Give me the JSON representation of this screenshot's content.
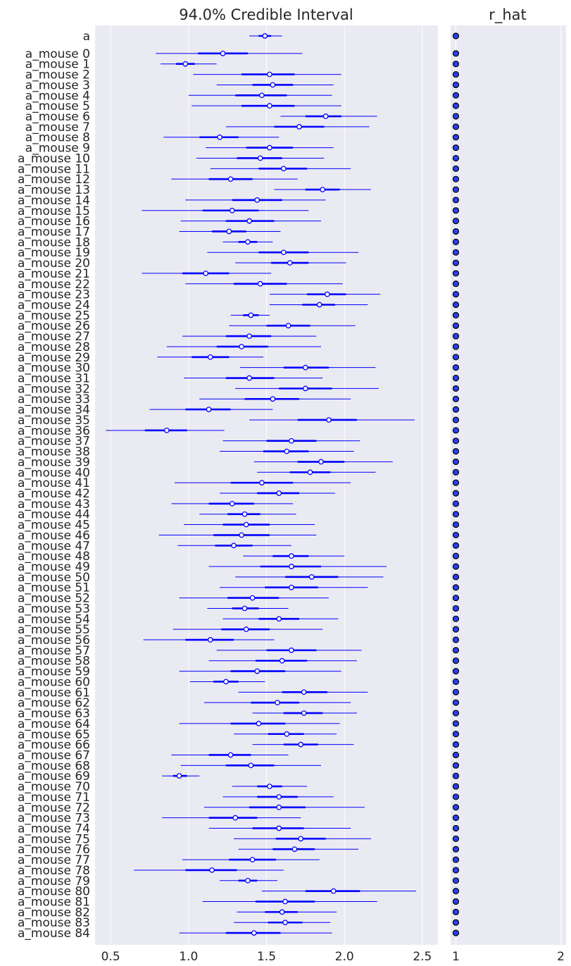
{
  "chart_data": [
    {
      "type": "forest",
      "title": "94.0% Credible Interval",
      "xlim": [
        0.4,
        2.6
      ],
      "xticks": [
        0.5,
        1.0,
        1.5,
        2.0,
        2.5
      ],
      "xtick_labels": [
        "0.5",
        "1.0",
        "1.5",
        "2.0",
        "2.5"
      ],
      "grid": true,
      "colors": {
        "line": "#0000ff",
        "marker_fill": "#ffffff",
        "background": "#eaeaf2",
        "grid": "#ffffff"
      },
      "labels": [
        "a",
        "a_mouse 0",
        "a_mouse 1",
        "a_mouse 2",
        "a_mouse 3",
        "a_mouse 4",
        "a_mouse 5",
        "a_mouse 6",
        "a_mouse 7",
        "a_mouse 8",
        "a_mouse 9",
        "a_mouse 10",
        "a_mouse 11",
        "a_mouse 12",
        "a_mouse 13",
        "a_mouse 14",
        "a_mouse 15",
        "a_mouse 16",
        "a_mouse 17",
        "a_mouse 18",
        "a_mouse 19",
        "a_mouse 20",
        "a_mouse 21",
        "a_mouse 22",
        "a_mouse 23",
        "a_mouse 24",
        "a_mouse 25",
        "a_mouse 26",
        "a_mouse 27",
        "a_mouse 28",
        "a_mouse 29",
        "a_mouse 30",
        "a_mouse 31",
        "a_mouse 32",
        "a_mouse 33",
        "a_mouse 34",
        "a_mouse 35",
        "a_mouse 36",
        "a_mouse 37",
        "a_mouse 38",
        "a_mouse 39",
        "a_mouse 40",
        "a_mouse 41",
        "a_mouse 42",
        "a_mouse 43",
        "a_mouse 44",
        "a_mouse 45",
        "a_mouse 46",
        "a_mouse 47",
        "a_mouse 48",
        "a_mouse 49",
        "a_mouse 50",
        "a_mouse 51",
        "a_mouse 52",
        "a_mouse 53",
        "a_mouse 54",
        "a_mouse 55",
        "a_mouse 56",
        "a_mouse 57",
        "a_mouse 58",
        "a_mouse 59",
        "a_mouse 60",
        "a_mouse 61",
        "a_mouse 62",
        "a_mouse 63",
        "a_mouse 64",
        "a_mouse 65",
        "a_mouse 66",
        "a_mouse 67",
        "a_mouse 68",
        "a_mouse 69",
        "a_mouse 70",
        "a_mouse 71",
        "a_mouse 72",
        "a_mouse 73",
        "a_mouse 74",
        "a_mouse 75",
        "a_mouse 76",
        "a_mouse 77",
        "a_mouse 78",
        "a_mouse 79",
        "a_mouse 80",
        "a_mouse 81",
        "a_mouse 82",
        "a_mouse 83",
        "a_mouse 84"
      ],
      "median": [
        1.49,
        1.22,
        0.98,
        1.52,
        1.54,
        1.47,
        1.52,
        1.88,
        1.71,
        1.2,
        1.52,
        1.46,
        1.61,
        1.27,
        1.86,
        1.44,
        1.28,
        1.39,
        1.26,
        1.38,
        1.61,
        1.65,
        1.11,
        1.46,
        1.89,
        1.84,
        1.4,
        1.64,
        1.39,
        1.34,
        1.14,
        1.75,
        1.39,
        1.75,
        1.54,
        1.13,
        1.9,
        0.86,
        1.66,
        1.63,
        1.85,
        1.78,
        1.47,
        1.58,
        1.28,
        1.36,
        1.37,
        1.34,
        1.29,
        1.66,
        1.66,
        1.79,
        1.66,
        1.41,
        1.36,
        1.58,
        1.37,
        1.14,
        1.66,
        1.6,
        1.44,
        1.24,
        1.74,
        1.57,
        1.74,
        1.45,
        1.63,
        1.72,
        1.27,
        1.4,
        0.94,
        1.52,
        1.58,
        1.58,
        1.3,
        1.58,
        1.72,
        1.68,
        1.41,
        1.15,
        1.38,
        1.93,
        1.62,
        1.6,
        1.62,
        1.42
      ],
      "iqr_low": [
        1.45,
        1.06,
        0.92,
        1.34,
        1.41,
        1.3,
        1.34,
        1.75,
        1.55,
        1.07,
        1.37,
        1.31,
        1.45,
        1.13,
        1.75,
        1.28,
        1.09,
        1.24,
        1.15,
        1.32,
        1.45,
        1.53,
        0.96,
        1.29,
        1.76,
        1.73,
        1.35,
        1.5,
        1.24,
        1.18,
        1.02,
        1.61,
        1.24,
        1.58,
        1.36,
        0.98,
        1.7,
        0.72,
        1.5,
        1.48,
        1.7,
        1.65,
        1.27,
        1.44,
        1.13,
        1.25,
        1.22,
        1.16,
        1.17,
        1.54,
        1.46,
        1.62,
        1.49,
        1.25,
        1.28,
        1.45,
        1.21,
        0.98,
        1.5,
        1.43,
        1.27,
        1.16,
        1.6,
        1.4,
        1.61,
        1.27,
        1.51,
        1.61,
        1.13,
        1.24,
        0.9,
        1.44,
        1.44,
        1.39,
        1.13,
        1.41,
        1.56,
        1.54,
        1.26,
        0.98,
        1.32,
        1.75,
        1.43,
        1.49,
        1.51,
        1.24
      ],
      "iqr_high": [
        1.53,
        1.38,
        1.04,
        1.68,
        1.67,
        1.63,
        1.68,
        1.98,
        1.87,
        1.32,
        1.67,
        1.6,
        1.76,
        1.41,
        1.97,
        1.6,
        1.45,
        1.55,
        1.37,
        1.44,
        1.77,
        1.77,
        1.26,
        1.63,
        2.01,
        1.94,
        1.45,
        1.78,
        1.53,
        1.51,
        1.26,
        1.9,
        1.55,
        1.92,
        1.71,
        1.27,
        2.08,
        0.99,
        1.82,
        1.77,
        2.0,
        1.91,
        1.67,
        1.71,
        1.42,
        1.46,
        1.52,
        1.52,
        1.41,
        1.77,
        1.85,
        1.96,
        1.83,
        1.58,
        1.45,
        1.71,
        1.52,
        1.29,
        1.82,
        1.76,
        1.62,
        1.32,
        1.89,
        1.71,
        1.86,
        1.62,
        1.74,
        1.83,
        1.4,
        1.55,
        0.99,
        1.6,
        1.7,
        1.75,
        1.44,
        1.74,
        1.88,
        1.81,
        1.56,
        1.31,
        1.44,
        2.1,
        1.81,
        1.7,
        1.73,
        1.59
      ],
      "hdi_low": [
        1.39,
        0.79,
        0.82,
        1.03,
        1.18,
        1.0,
        1.02,
        1.59,
        1.24,
        0.84,
        1.11,
        1.05,
        1.14,
        0.89,
        1.55,
        0.98,
        0.7,
        0.95,
        0.94,
        1.22,
        1.12,
        1.3,
        0.7,
        0.98,
        1.52,
        1.52,
        1.27,
        1.26,
        0.96,
        0.86,
        0.8,
        1.33,
        0.97,
        1.3,
        1.07,
        0.75,
        1.39,
        0.47,
        1.22,
        1.2,
        1.42,
        1.44,
        0.91,
        1.2,
        0.89,
        1.07,
        0.97,
        0.81,
        0.93,
        1.35,
        1.13,
        1.3,
        1.2,
        0.94,
        1.12,
        1.22,
        0.9,
        0.71,
        1.18,
        1.13,
        0.94,
        1.01,
        1.32,
        1.1,
        1.41,
        0.94,
        1.29,
        1.41,
        0.89,
        0.95,
        0.83,
        1.28,
        1.22,
        1.1,
        0.83,
        1.13,
        1.29,
        1.32,
        0.96,
        0.65,
        1.2,
        1.47,
        1.09,
        1.31,
        1.29,
        0.94
      ],
      "hdi_high": [
        1.6,
        1.73,
        1.18,
        1.98,
        1.93,
        1.92,
        1.98,
        2.21,
        2.16,
        1.58,
        1.93,
        1.87,
        2.04,
        1.7,
        2.17,
        1.88,
        1.77,
        1.85,
        1.59,
        1.54,
        2.09,
        2.01,
        1.53,
        1.99,
        2.23,
        2.15,
        1.52,
        2.07,
        1.82,
        1.85,
        1.48,
        2.2,
        1.86,
        2.22,
        2.04,
        1.54,
        2.45,
        1.23,
        2.1,
        2.06,
        2.31,
        2.2,
        2.04,
        1.94,
        1.67,
        1.69,
        1.81,
        1.82,
        1.66,
        2.0,
        2.27,
        2.25,
        2.15,
        1.9,
        1.64,
        1.96,
        1.86,
        1.55,
        2.11,
        2.08,
        1.98,
        1.49,
        2.15,
        2.04,
        2.08,
        1.97,
        1.95,
        2.06,
        1.64,
        1.85,
        1.07,
        1.76,
        1.93,
        2.13,
        1.72,
        2.04,
        2.17,
        2.09,
        1.84,
        1.61,
        1.57,
        2.46,
        2.21,
        1.95,
        1.91,
        1.92
      ]
    },
    {
      "type": "scatter",
      "title": "r_hat",
      "xlim": [
        0.95,
        2.05
      ],
      "xticks": [
        1,
        2
      ],
      "xtick_labels": [
        "1",
        "2"
      ],
      "grid": true,
      "values": [
        1,
        1,
        1,
        1,
        1,
        1,
        1,
        1,
        1,
        1,
        1,
        1,
        1,
        1,
        1,
        1,
        1,
        1,
        1,
        1,
        1,
        1,
        1,
        1,
        1,
        1,
        1,
        1,
        1,
        1,
        1,
        1,
        1,
        1,
        1,
        1,
        1,
        1,
        1,
        1,
        1,
        1,
        1,
        1,
        1,
        1,
        1,
        1,
        1,
        1,
        1,
        1,
        1,
        1,
        1,
        1,
        1,
        1,
        1,
        1,
        1,
        1,
        1,
        1,
        1,
        1,
        1,
        1,
        1,
        1,
        1,
        1,
        1,
        1,
        1,
        1,
        1,
        1,
        1,
        1,
        1,
        1,
        1,
        1,
        1,
        1
      ],
      "colors": {
        "marker_fill": "#2a3ff0",
        "marker_edge": "#000000"
      }
    }
  ]
}
